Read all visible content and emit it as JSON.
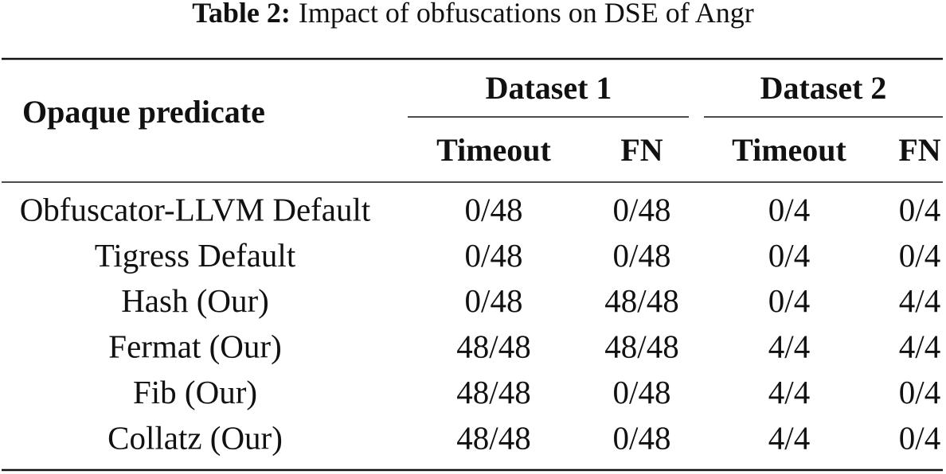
{
  "caption": {
    "label": "Table 2:",
    "text": "Impact of obfuscations on DSE of Angr"
  },
  "table": {
    "row_header": "Opaque predicate",
    "groups": [
      "Dataset 1",
      "Dataset 2"
    ],
    "subheaders": [
      "Timeout",
      "FN",
      "Timeout",
      "FN"
    ],
    "rows": [
      [
        "Obfuscator-LLVM Default",
        "0/48",
        "0/48",
        "0/4",
        "0/4"
      ],
      [
        "Tigress Default",
        "0/48",
        "0/48",
        "0/4",
        "0/4"
      ],
      [
        "Hash (Our)",
        "0/48",
        "48/48",
        "0/4",
        "4/4"
      ],
      [
        "Fermat (Our)",
        "48/48",
        "48/48",
        "4/4",
        "4/4"
      ],
      [
        "Fib (Our)",
        "48/48",
        "0/48",
        "4/4",
        "0/4"
      ],
      [
        "Collatz (Our)",
        "48/48",
        "0/48",
        "4/4",
        "0/4"
      ]
    ]
  }
}
